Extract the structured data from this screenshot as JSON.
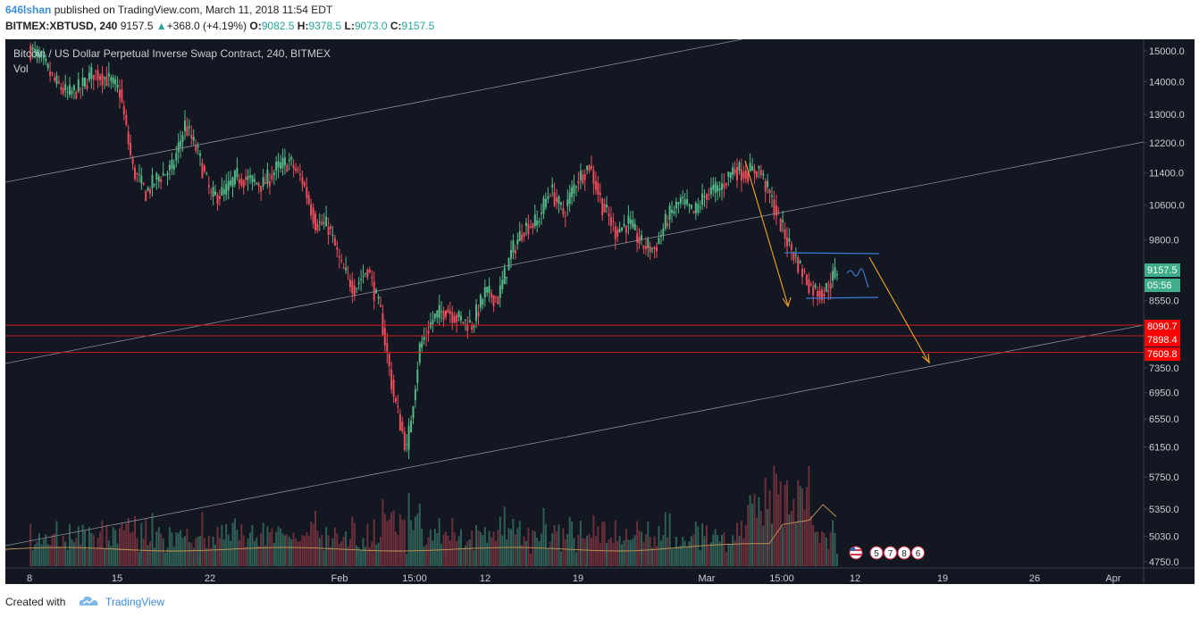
{
  "header": {
    "author": "646lshan",
    "published_text": "published on TradingView.com, March 11, 2018 11:54 EDT",
    "symbol": "BITMEX:XBTUSD, 240",
    "last": "9157.5",
    "change": "+368.0 (+4.19%)",
    "open_label": "O:",
    "open": "9082.5",
    "high_label": "H:",
    "high": "9378.5",
    "low_label": "L:",
    "low": "9073.0",
    "close_label": "C:",
    "close": "9157.5"
  },
  "footer": {
    "created_with": "Created with",
    "brand": "TradingView"
  },
  "chart_data": {
    "type": "candlestick",
    "title": "Bitcoin / US Dollar Perpetual Inverse Swap Contract, 240, BITMEX",
    "volume_label": "Vol",
    "y_axis_ticks": [
      "15000.0",
      "14000.0",
      "13000.0",
      "12200.0",
      "11400.0",
      "10600.0",
      "9800.0",
      "8550.0",
      "7350.0",
      "6950.0",
      "6550.0",
      "6150.0",
      "5750.0",
      "5350.0",
      "5030.0",
      "4750.0"
    ],
    "y_scale": "log",
    "x_axis_ticks": [
      "8",
      "15",
      "22",
      "Feb",
      "15:00",
      "12",
      "19",
      "Mar",
      "15:00",
      "12",
      "19",
      "26",
      "Apr"
    ],
    "price_path": [
      [
        "Jan 8",
        15100
      ],
      [
        "Jan 9",
        14700
      ],
      [
        "Jan 10",
        14000
      ],
      [
        "Jan 11",
        13600
      ],
      [
        "Jan 12",
        13800
      ],
      [
        "Jan 13",
        14300
      ],
      [
        "Jan 14",
        14100
      ],
      [
        "Jan 15",
        13700
      ],
      [
        "Jan 16",
        11500
      ],
      [
        "Jan 17",
        10900
      ],
      [
        "Jan 18",
        11300
      ],
      [
        "Jan 19",
        11500
      ],
      [
        "Jan 20",
        12700
      ],
      [
        "Jan 21",
        11900
      ],
      [
        "Jan 22",
        10800
      ],
      [
        "Jan 23",
        10900
      ],
      [
        "Jan 24",
        11300
      ],
      [
        "Jan 25",
        11200
      ],
      [
        "Jan 26",
        11100
      ],
      [
        "Jan 27",
        11500
      ],
      [
        "Jan 28",
        11700
      ],
      [
        "Jan 29",
        11200
      ],
      [
        "Jan 30",
        10200
      ],
      [
        "Jan 31",
        10100
      ],
      [
        "Feb 1",
        9200
      ],
      [
        "Feb 2",
        8800
      ],
      [
        "Feb 3",
        9200
      ],
      [
        "Feb 4",
        8300
      ],
      [
        "Feb 5",
        6900
      ],
      [
        "Feb 6",
        6100
      ],
      [
        "Feb 7",
        7700
      ],
      [
        "Feb 8",
        8200
      ],
      [
        "Feb 9",
        8400
      ],
      [
        "Feb 10",
        8200
      ],
      [
        "Feb 11",
        8100
      ],
      [
        "Feb 12",
        8700
      ],
      [
        "Feb 13",
        8600
      ],
      [
        "Feb 14",
        9500
      ],
      [
        "Feb 15",
        10100
      ],
      [
        "Feb 16",
        10200
      ],
      [
        "Feb 17",
        11000
      ],
      [
        "Feb 18",
        10400
      ],
      [
        "Feb 19",
        11200
      ],
      [
        "Feb 20",
        11600
      ],
      [
        "Feb 21",
        10600
      ],
      [
        "Feb 22",
        10000
      ],
      [
        "Feb 23",
        10200
      ],
      [
        "Feb 24",
        9700
      ],
      [
        "Feb 25",
        9600
      ],
      [
        "Feb 26",
        10300
      ],
      [
        "Feb 27",
        10700
      ],
      [
        "Feb 28",
        10400
      ],
      [
        "Mar 1",
        10900
      ],
      [
        "Mar 2",
        11000
      ],
      [
        "Mar 3",
        11500
      ],
      [
        "Mar 4",
        11400
      ],
      [
        "Mar 5",
        11500
      ],
      [
        "Mar 6",
        10700
      ],
      [
        "Mar 7",
        9900
      ],
      [
        "Mar 8",
        9300
      ],
      [
        "Mar 9",
        8800
      ],
      [
        "Mar 10",
        8700
      ],
      [
        "Mar 11",
        9157.5
      ]
    ],
    "price_labels": [
      {
        "text": "9157.5",
        "value": 9157.5,
        "color": "#3fae8b"
      },
      {
        "text": "05:56",
        "value": 8880,
        "color": "#3fae8b"
      },
      {
        "text": "8090.7",
        "value": 8090.7,
        "color": "#ff0000"
      },
      {
        "text": "7898.4",
        "value": 7898.4,
        "color": "#ff0000"
      },
      {
        "text": "7609.8",
        "value": 7609.8,
        "color": "#ff0000"
      }
    ],
    "horizontal_levels": [
      8090.7,
      7898.4,
      7609.8
    ],
    "event_badges": [
      "5",
      "7",
      "8",
      "6"
    ],
    "colors": {
      "background": "#131722",
      "up": "#53b987",
      "down": "#eb4d5c",
      "levels": "#d01c1c",
      "arrows": "#f5a623",
      "range_box": "#3a7bd5"
    }
  }
}
